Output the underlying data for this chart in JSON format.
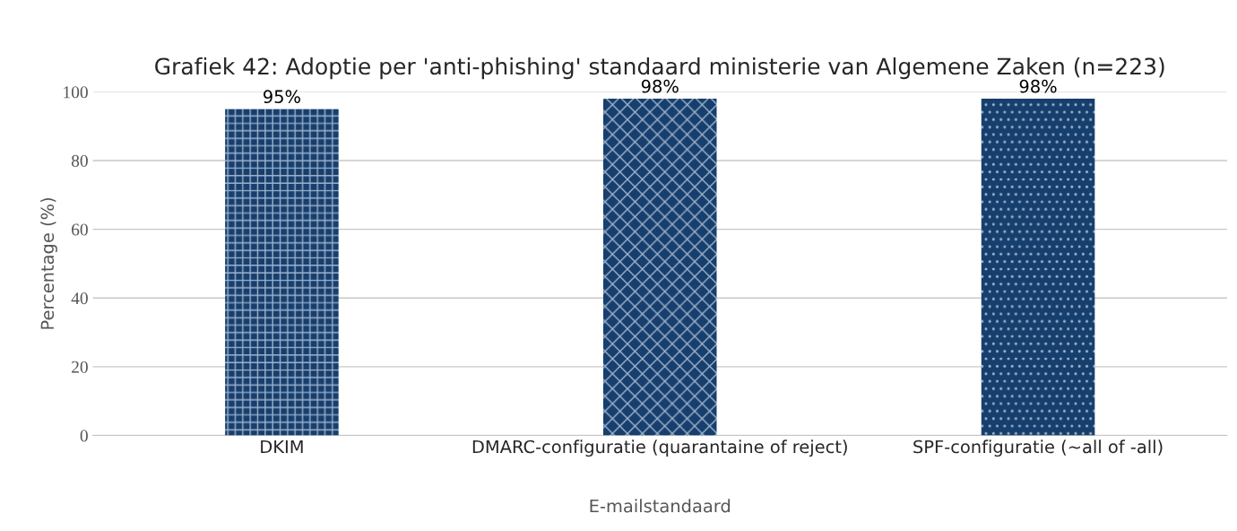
{
  "chart_data": {
    "type": "bar",
    "title": "Grafiek 42: Adoptie per 'anti-phishing' standaard ministerie van Algemene Zaken (n=223)",
    "categories": [
      "DKIM",
      "DMARC-configuratie (quarantaine of reject)",
      "SPF-configuratie (~all of -all)"
    ],
    "values": [
      95,
      98,
      98
    ],
    "color": "#173f6e",
    "xlabel": "E-mailstandaard",
    "ylabel": "Percentage (%)",
    "ylim": [
      0,
      100
    ],
    "yticks": [
      0,
      20,
      40,
      60,
      80,
      100
    ],
    "grid": "y",
    "value_labels": [
      "95%",
      "98%",
      "98%"
    ],
    "legend": false
  }
}
